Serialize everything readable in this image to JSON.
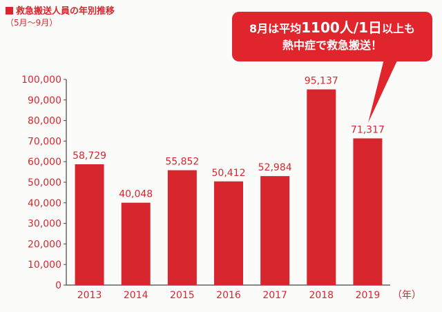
{
  "legend": {
    "title": "救急搬送人員の年別推移",
    "subtitle": "（5月～9月）"
  },
  "callout": {
    "line1_pre": "8月は平均",
    "line1_big": "1100人/1日",
    "line1_post": "以上も",
    "line2": "熱中症で救急搬送！"
  },
  "colors": {
    "bar": "#d8262e",
    "text": "#d8262e",
    "axis": "#444444"
  },
  "chart_data": {
    "type": "bar",
    "title": "救急搬送人員の年別推移",
    "subtitle": "（5月～9月）",
    "categories": [
      "2013",
      "2014",
      "2015",
      "2016",
      "2017",
      "2018",
      "2019"
    ],
    "values": [
      58729,
      40048,
      55852,
      50412,
      52984,
      95137,
      71317
    ],
    "value_labels": [
      "58,729",
      "40,048",
      "55,852",
      "50,412",
      "52,984",
      "95,137",
      "71,317"
    ],
    "xunit": "（年）",
    "ylim": [
      0,
      100000
    ],
    "yticks": [
      0,
      10000,
      20000,
      30000,
      40000,
      50000,
      60000,
      70000,
      80000,
      90000,
      100000
    ],
    "ytick_labels": [
      "0",
      "10,000",
      "20,000",
      "30,000",
      "40,000",
      "50,000",
      "60,000",
      "70,000",
      "80,000",
      "90,000",
      "100,000"
    ],
    "grid": false
  }
}
